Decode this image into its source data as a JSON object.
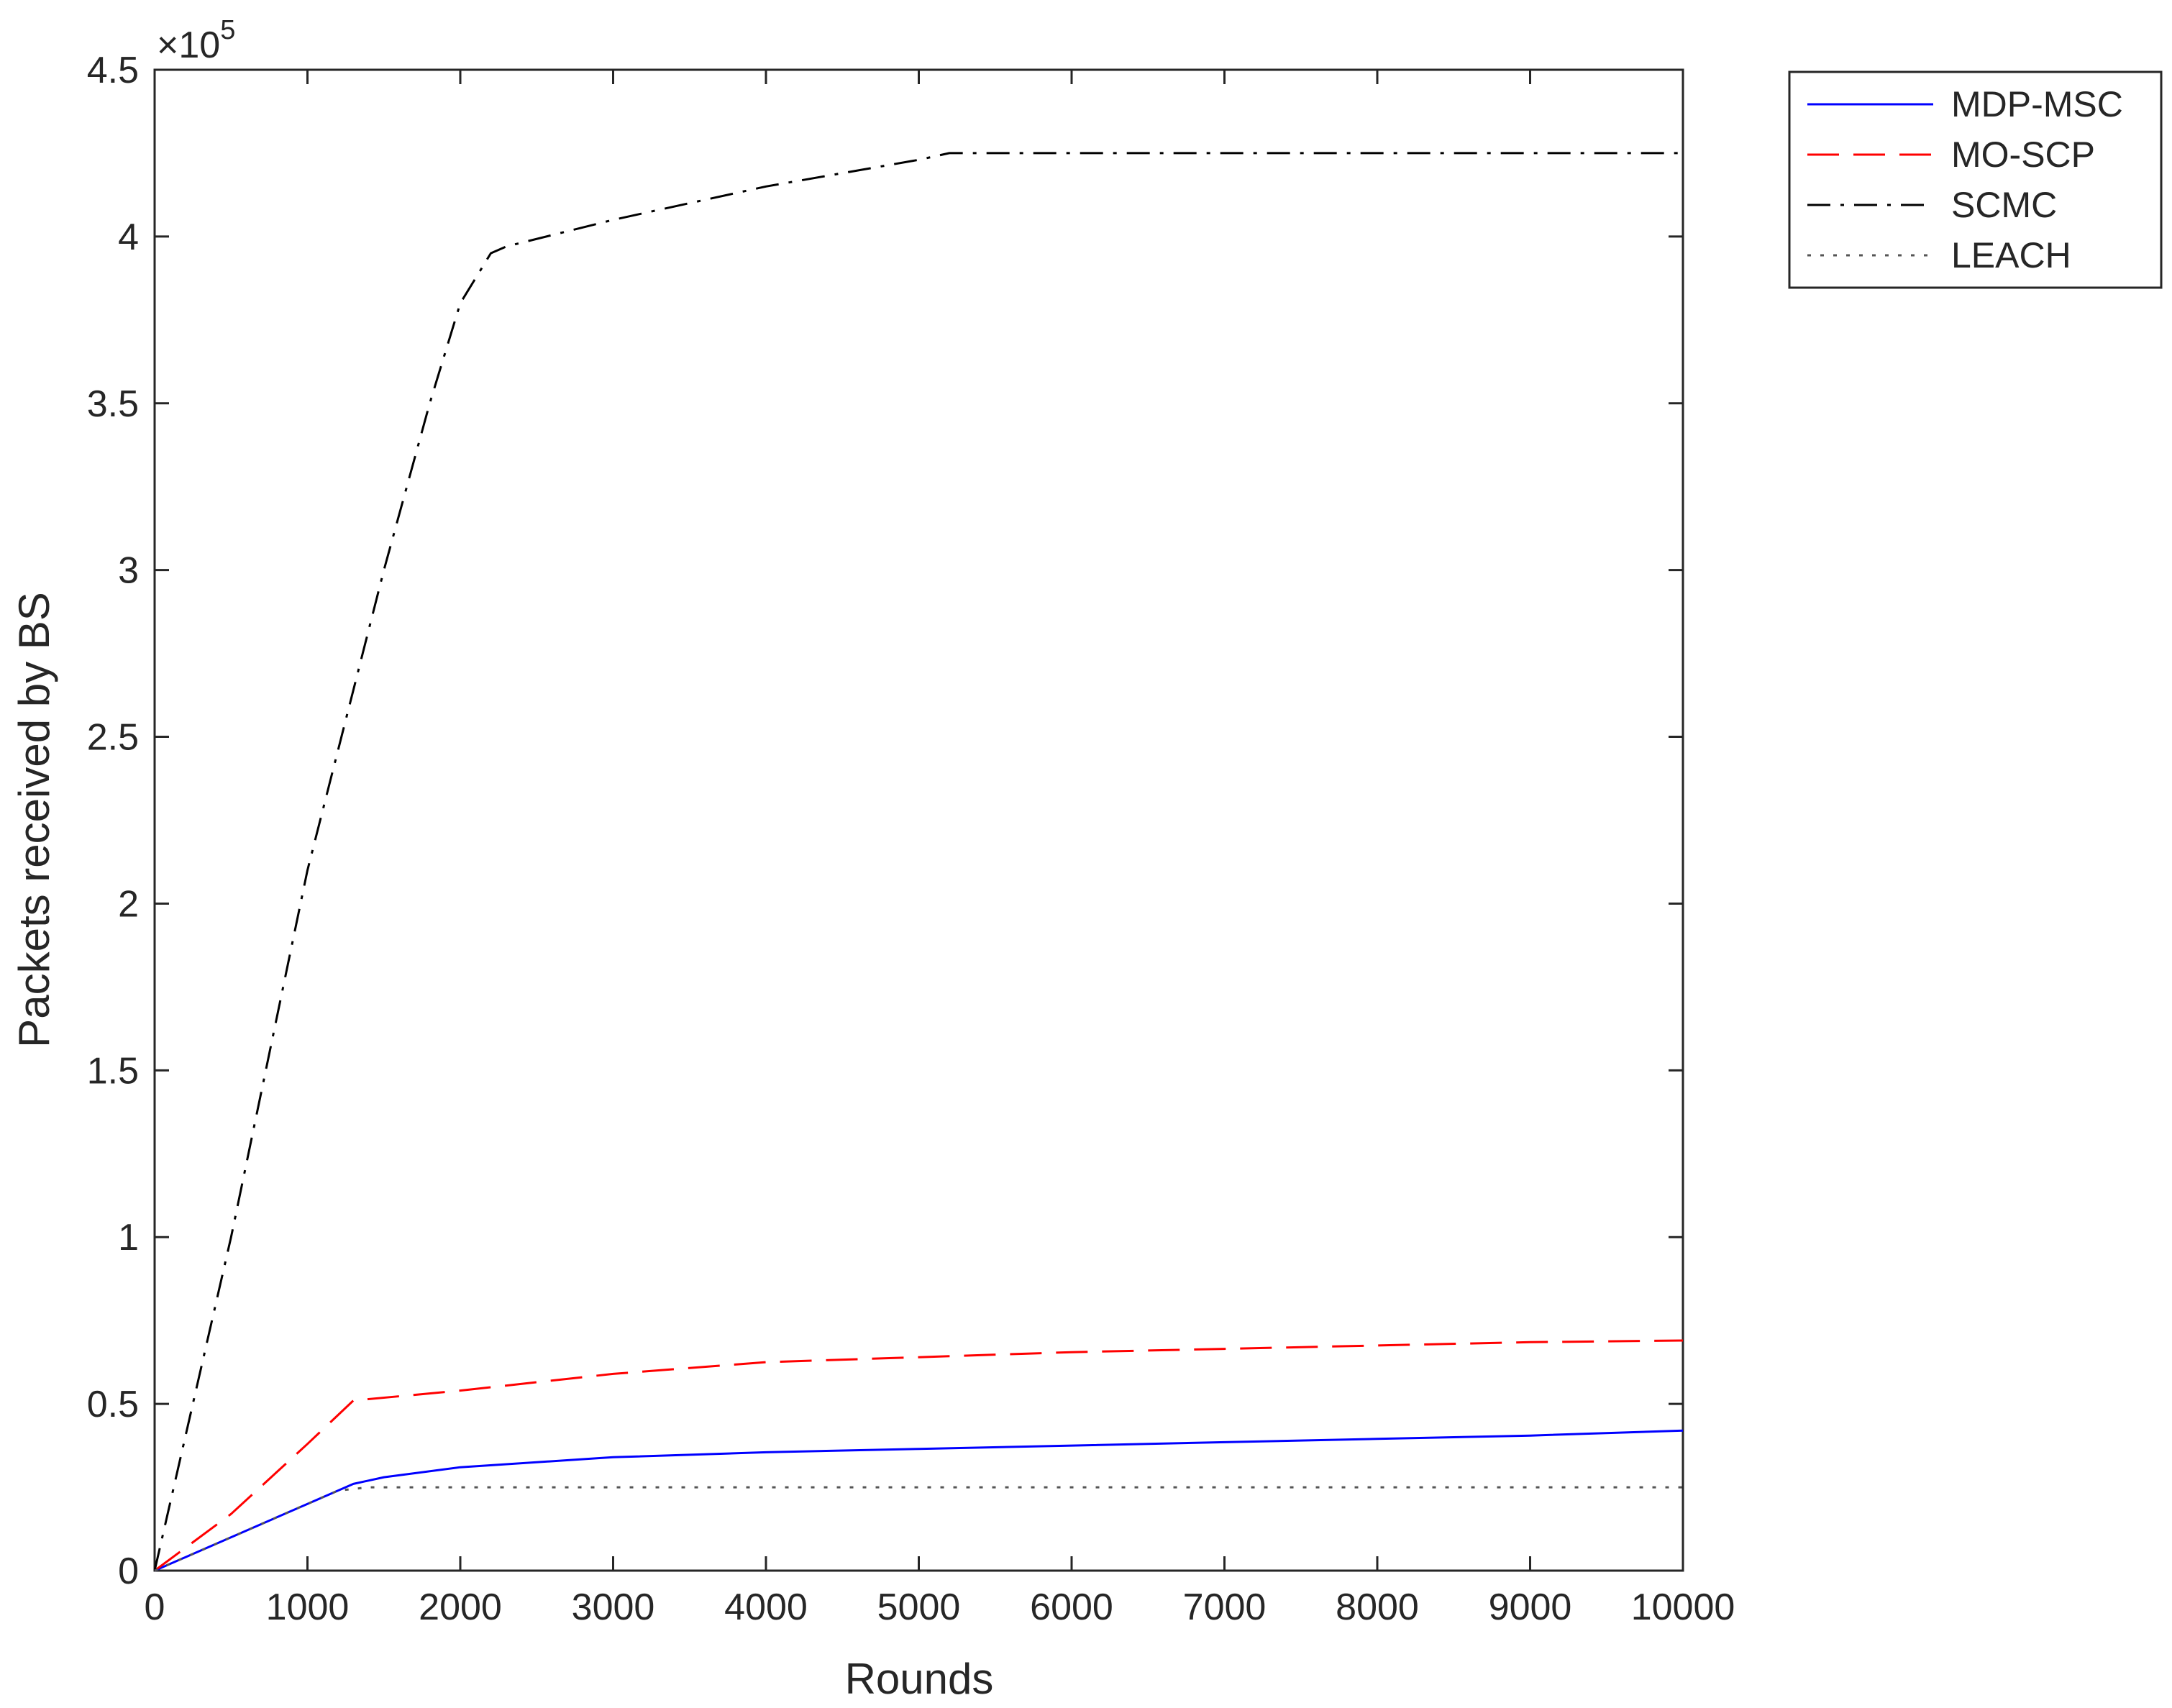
{
  "chart_data": {
    "type": "line",
    "title": "",
    "xlabel": "Rounds",
    "ylabel": "Packets received by BS",
    "y_multiplier_label": "×10",
    "y_multiplier_exponent": "5",
    "xlim": [
      0,
      10000
    ],
    "ylim": [
      0,
      4.5
    ],
    "x_ticks": [
      0,
      1000,
      2000,
      3000,
      4000,
      5000,
      6000,
      7000,
      8000,
      9000,
      10000
    ],
    "x_tick_labels": [
      "0",
      "1000",
      "2000",
      "3000",
      "4000",
      "5000",
      "6000",
      "7000",
      "8000",
      "9000",
      "10000"
    ],
    "y_ticks": [
      0,
      0.5,
      1,
      1.5,
      2,
      2.5,
      3,
      3.5,
      4,
      4.5
    ],
    "y_tick_labels": [
      "0",
      "0.5",
      "1",
      "1.5",
      "2",
      "2.5",
      "3",
      "3.5",
      "4",
      "4.5"
    ],
    "grid": false,
    "legend_position": "outside top-right",
    "series": [
      {
        "name": "MDP-MSC",
        "color": "#0000ff",
        "style": "solid",
        "x": [
          0,
          500,
          1000,
          1300,
          1500,
          2000,
          3000,
          4000,
          5000,
          6000,
          7000,
          8000,
          9000,
          10000
        ],
        "y": [
          0,
          0.1,
          0.2,
          0.26,
          0.28,
          0.31,
          0.34,
          0.355,
          0.365,
          0.375,
          0.385,
          0.395,
          0.405,
          0.42
        ]
      },
      {
        "name": "MO-SCP",
        "color": "#ff0000",
        "style": "dashed",
        "x": [
          0,
          500,
          1000,
          1300,
          2000,
          3000,
          4000,
          5000,
          6000,
          7000,
          8000,
          9000,
          10000
        ],
        "y": [
          0,
          0.17,
          0.38,
          0.51,
          0.54,
          0.59,
          0.625,
          0.64,
          0.655,
          0.665,
          0.675,
          0.685,
          0.69
        ]
      },
      {
        "name": "SCMC",
        "color": "#000000",
        "style": "dashdot",
        "x": [
          0,
          500,
          1000,
          1500,
          1800,
          2000,
          2200,
          2300,
          3000,
          4000,
          5000,
          5200,
          6000,
          7000,
          8000,
          9000,
          10000
        ],
        "y": [
          0,
          1.0,
          2.1,
          3.0,
          3.5,
          3.8,
          3.95,
          3.97,
          4.05,
          4.15,
          4.23,
          4.25,
          4.25,
          4.25,
          4.25,
          4.25,
          4.25
        ]
      },
      {
        "name": "LEACH",
        "color": "#555555",
        "style": "dotted",
        "x": [
          0,
          500,
          1000,
          1200,
          1400,
          2000,
          3000,
          4000,
          5000,
          6000,
          7000,
          8000,
          9000,
          10000
        ],
        "y": [
          0,
          0.1,
          0.2,
          0.24,
          0.25,
          0.25,
          0.25,
          0.25,
          0.25,
          0.25,
          0.25,
          0.25,
          0.25,
          0.25
        ]
      }
    ]
  }
}
